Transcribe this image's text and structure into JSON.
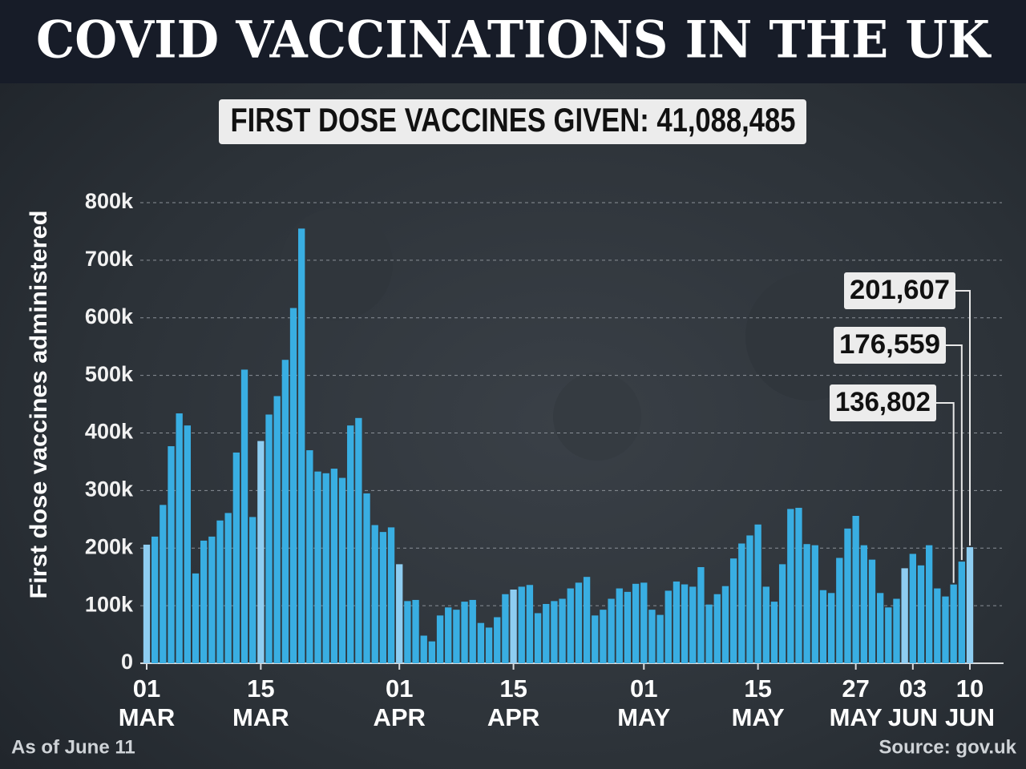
{
  "chart_data": {
    "type": "bar",
    "title": "COVID VACCINATIONS IN THE UK",
    "subtitle": "FIRST DOSE VACCINES GIVEN: 41,088,485",
    "y_label": "First dose vaccines administered",
    "note": "As of June 11",
    "source": "Source: gov.uk",
    "categories": [
      "01 MAR",
      null,
      null,
      null,
      null,
      null,
      null,
      null,
      null,
      null,
      null,
      null,
      null,
      null,
      "15 MAR",
      null,
      null,
      null,
      null,
      null,
      null,
      null,
      null,
      null,
      null,
      null,
      null,
      null,
      null,
      null,
      null,
      "01 APR",
      null,
      null,
      null,
      null,
      null,
      null,
      null,
      null,
      null,
      null,
      null,
      null,
      null,
      "15 APR",
      null,
      null,
      null,
      null,
      null,
      null,
      null,
      null,
      null,
      null,
      null,
      null,
      null,
      null,
      null,
      "01 MAY",
      null,
      null,
      null,
      null,
      null,
      null,
      null,
      null,
      null,
      null,
      null,
      null,
      null,
      "15 MAY",
      null,
      null,
      null,
      null,
      null,
      null,
      null,
      null,
      null,
      null,
      null,
      "27 MAY",
      null,
      null,
      null,
      null,
      null,
      null,
      "03 JUN",
      null,
      null,
      null,
      null,
      null,
      null,
      "10 JUN"
    ],
    "values": [
      206000,
      220000,
      275000,
      377000,
      434000,
      413000,
      156000,
      213000,
      220000,
      248000,
      261000,
      366000,
      510000,
      254000,
      386000,
      432000,
      464000,
      527000,
      617000,
      755000,
      370000,
      333000,
      330000,
      338000,
      322000,
      413000,
      426000,
      295000,
      240000,
      228000,
      236000,
      172000,
      108000,
      110000,
      48000,
      38000,
      83000,
      97000,
      93000,
      107000,
      110000,
      70000,
      62000,
      80000,
      120000,
      128000,
      133000,
      136000,
      87000,
      103000,
      108000,
      112000,
      130000,
      140000,
      150000,
      83000,
      93000,
      112000,
      130000,
      124000,
      138000,
      140000,
      93000,
      84000,
      126000,
      142000,
      137000,
      133000,
      167000,
      102000,
      120000,
      134000,
      182000,
      208000,
      222000,
      241000,
      133000,
      107000,
      172000,
      268000,
      270000,
      207000,
      205000,
      127000,
      122000,
      183000,
      234000,
      256000,
      205000,
      180000,
      122000,
      97000,
      112000,
      165000,
      190000,
      170000,
      205000,
      130000,
      116000,
      136802,
      176559,
      201607
    ],
    "value_labels": [
      null,
      null,
      null,
      null,
      null,
      null,
      null,
      null,
      null,
      null,
      null,
      null,
      null,
      null,
      null,
      null,
      null,
      null,
      null,
      null,
      null,
      null,
      null,
      null,
      null,
      null,
      null,
      null,
      null,
      null,
      null,
      null,
      null,
      null,
      null,
      null,
      null,
      null,
      null,
      null,
      null,
      null,
      null,
      null,
      null,
      null,
      null,
      null,
      null,
      null,
      null,
      null,
      null,
      null,
      null,
      null,
      null,
      null,
      null,
      null,
      null,
      null,
      null,
      null,
      null,
      null,
      null,
      null,
      null,
      null,
      null,
      null,
      null,
      null,
      null,
      null,
      null,
      null,
      null,
      null,
      null,
      null,
      null,
      null,
      null,
      null,
      null,
      null,
      null,
      null,
      null,
      null,
      null,
      null,
      null,
      null,
      null,
      null,
      null,
      "136,802",
      "176,559",
      "201,607"
    ],
    "color": "#39aee2",
    "highlight_color": "#8ecdf1",
    "highlighted": [
      0,
      14,
      31,
      45,
      93,
      101
    ],
    "ylim": [
      0,
      800000
    ],
    "yticks": [
      {
        "value": 0,
        "label": "0"
      },
      {
        "value": 100000,
        "label": "100k"
      },
      {
        "value": 200000,
        "label": "200k"
      },
      {
        "value": 300000,
        "label": "300k"
      },
      {
        "value": 400000,
        "label": "400k"
      },
      {
        "value": 500000,
        "label": "500k"
      },
      {
        "value": 600000,
        "label": "600k"
      },
      {
        "value": 700000,
        "label": "700k"
      },
      {
        "value": 800000,
        "label": "800k"
      }
    ],
    "grid": true
  }
}
